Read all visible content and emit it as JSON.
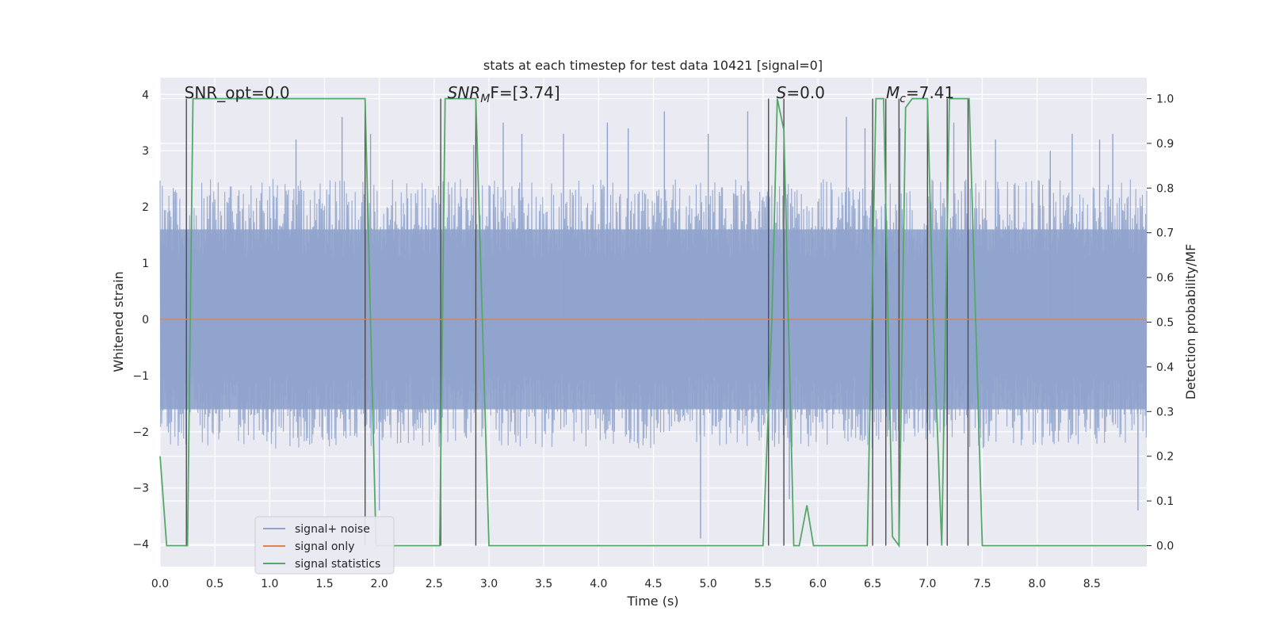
{
  "chart_data": {
    "type": "line",
    "title": "stats at each timestep for test data 10421 [signal=0]",
    "xlabel": "Time (s)",
    "ylabel": "Whitened strain",
    "ylabel_right": "Detection probability/MF",
    "xlim": [
      0,
      9.0
    ],
    "ylim": [
      -4.4,
      4.3
    ],
    "ylim_right": [
      -0.047,
      1.047
    ],
    "x_ticks": [
      0.0,
      0.5,
      1.0,
      1.5,
      2.0,
      2.5,
      3.0,
      3.5,
      4.0,
      4.5,
      5.0,
      5.5,
      6.0,
      6.5,
      7.0,
      7.5,
      8.0,
      8.5
    ],
    "x_tick_labels": [
      "0.0",
      "0.5",
      "1.0",
      "1.5",
      "2.0",
      "2.5",
      "3.0",
      "3.5",
      "4.0",
      "4.5",
      "5.0",
      "5.5",
      "6.0",
      "6.5",
      "7.0",
      "7.5",
      "8.0",
      "8.5"
    ],
    "y_ticks": [
      -4,
      -3,
      -2,
      -1,
      0,
      1,
      2,
      3,
      4
    ],
    "y_tick_labels": [
      "−4",
      "−3",
      "−2",
      "−1",
      "0",
      "1",
      "2",
      "3",
      "4"
    ],
    "y2_ticks": [
      0.0,
      0.1,
      0.2,
      0.3,
      0.4,
      0.5,
      0.6,
      0.7,
      0.8,
      0.9,
      1.0
    ],
    "y2_tick_labels": [
      "0.0",
      "0.1",
      "0.2",
      "0.3",
      "0.4",
      "0.5",
      "0.6",
      "0.7",
      "0.8",
      "0.9",
      "1.0"
    ],
    "grid": true,
    "legend_position": "lower-left",
    "colors": {
      "plot_background": "#eaeaf2",
      "grid": "#ffffff",
      "noise": "#8fa3cc",
      "signal_only": "#dd8452",
      "statistics": "#55a868",
      "markers": "#4d4d4d"
    },
    "annotations": [
      {
        "text": "SNR_opt=0.0",
        "x": 0.2
      },
      {
        "text": "SNR",
        "sub": "M",
        "suffix": "F=[3.74]",
        "x": 2.6,
        "italic_main": true
      },
      {
        "text": "S",
        "suffix": "=0.0",
        "x": 5.6,
        "italic_main": true
      },
      {
        "text": "M",
        "sub": "c",
        "suffix": "=7.41",
        "x": 6.6,
        "italic_main": true
      }
    ],
    "series": [
      {
        "name": "signal+ noise",
        "axis": "left",
        "kind": "noise_band",
        "core_band": [
          -1.6,
          1.6
        ],
        "typical_extent": [
          -2.3,
          2.5
        ],
        "spikes": [
          {
            "x": 1.24,
            "y": 3.2
          },
          {
            "x": 1.66,
            "y": 3.6
          },
          {
            "x": 1.92,
            "y": 3.3
          },
          {
            "x": 2.0,
            "y": -3.4
          },
          {
            "x": 2.86,
            "y": 3.1
          },
          {
            "x": 3.13,
            "y": 3.5
          },
          {
            "x": 3.3,
            "y": 3.3
          },
          {
            "x": 3.68,
            "y": 3.3
          },
          {
            "x": 4.08,
            "y": 3.5
          },
          {
            "x": 4.27,
            "y": 3.4
          },
          {
            "x": 4.6,
            "y": 3.7
          },
          {
            "x": 4.93,
            "y": -3.9
          },
          {
            "x": 5.0,
            "y": 3.3
          },
          {
            "x": 5.36,
            "y": 3.7
          },
          {
            "x": 5.74,
            "y": -3.2
          },
          {
            "x": 6.26,
            "y": 3.6
          },
          {
            "x": 6.43,
            "y": 3.4
          },
          {
            "x": 6.75,
            "y": 3.4
          },
          {
            "x": 7.24,
            "y": 3.5
          },
          {
            "x": 7.62,
            "y": 3.2
          },
          {
            "x": 8.12,
            "y": 3.0
          },
          {
            "x": 8.32,
            "y": 3.3
          },
          {
            "x": 8.57,
            "y": 3.2
          },
          {
            "x": 8.69,
            "y": 3.3
          },
          {
            "x": 8.92,
            "y": -3.4
          }
        ]
      },
      {
        "name": "signal only",
        "axis": "left",
        "x": [
          0.0,
          9.0
        ],
        "y": [
          0.0,
          0.0
        ]
      },
      {
        "name": "signal statistics",
        "axis": "right",
        "x": [
          0.0,
          0.06,
          0.18,
          0.25,
          0.3,
          1.87,
          1.97,
          2.03,
          2.55,
          2.6,
          2.88,
          3.0,
          5.5,
          5.58,
          5.63,
          5.69,
          5.78,
          5.83,
          5.9,
          5.96,
          6.45,
          6.53,
          6.6,
          6.68,
          6.74,
          6.8,
          6.86,
          6.93,
          7.0,
          7.05,
          7.13,
          7.2,
          7.38,
          7.5,
          9.0
        ],
        "y": [
          0.2,
          0.0,
          0.0,
          0.0,
          1.0,
          1.0,
          0.0,
          0.0,
          0.0,
          1.0,
          1.0,
          0.0,
          0.0,
          0.5,
          1.0,
          0.93,
          0.0,
          0.0,
          0.09,
          0.0,
          0.0,
          1.0,
          1.0,
          0.02,
          0.0,
          0.98,
          1.0,
          1.0,
          1.0,
          0.52,
          0.0,
          1.0,
          1.0,
          0.0,
          0.0
        ]
      }
    ],
    "vertical_markers": [
      0.24,
      1.87,
      2.56,
      2.88,
      5.55,
      5.69,
      6.5,
      6.62,
      6.74,
      7.0,
      7.18,
      7.37
    ]
  }
}
